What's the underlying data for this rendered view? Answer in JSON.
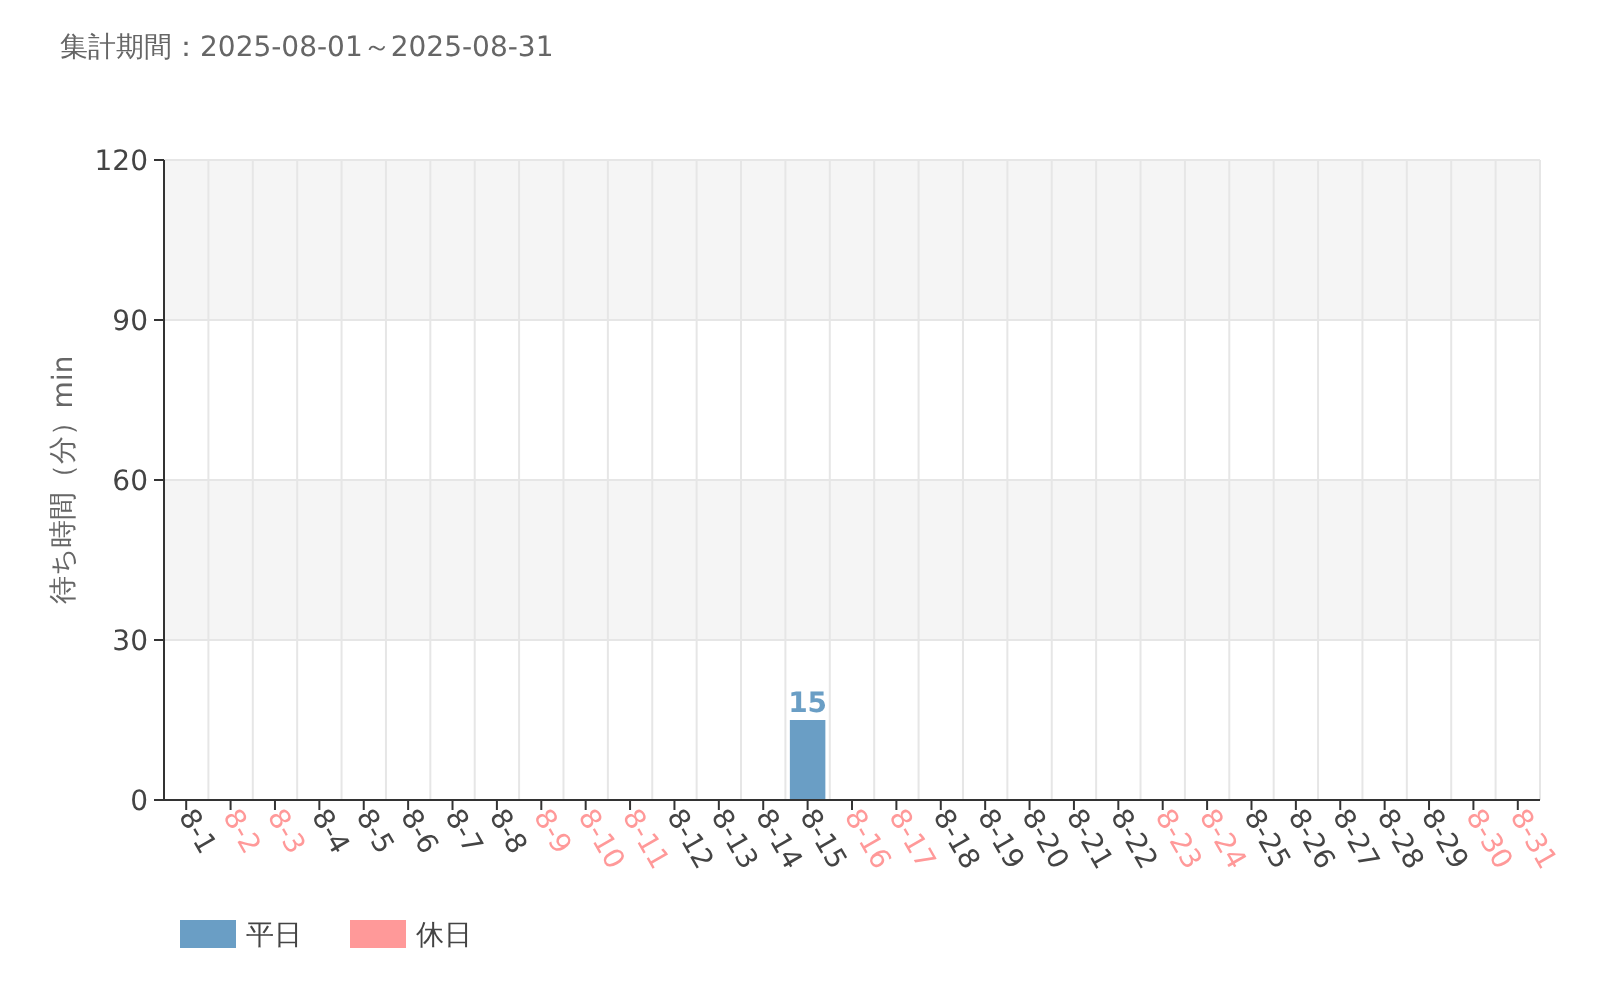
{
  "chart_data": {
    "type": "bar",
    "title": "集計期間：2025-08-01～2025-08-31",
    "ylabel": "待ち時間（分）min",
    "categories": [
      "8-1",
      "8-2",
      "8-3",
      "8-4",
      "8-5",
      "8-6",
      "8-7",
      "8-8",
      "8-9",
      "8-10",
      "8-11",
      "8-12",
      "8-13",
      "8-14",
      "8-15",
      "8-16",
      "8-17",
      "8-18",
      "8-19",
      "8-20",
      "8-21",
      "8-22",
      "8-23",
      "8-24",
      "8-25",
      "8-26",
      "8-27",
      "8-28",
      "8-29",
      "8-30",
      "8-31"
    ],
    "series": [
      {
        "name": "平日",
        "color": "#6a9ec5",
        "values": [
          0,
          null,
          null,
          0,
          0,
          0,
          0,
          0,
          null,
          null,
          null,
          0,
          0,
          0,
          15,
          null,
          null,
          0,
          0,
          0,
          0,
          0,
          null,
          null,
          0,
          0,
          0,
          0,
          0,
          null,
          null
        ],
        "value_labels": [
          null,
          null,
          null,
          null,
          null,
          null,
          null,
          null,
          null,
          null,
          null,
          null,
          null,
          null,
          "15",
          null,
          null,
          null,
          null,
          null,
          null,
          null,
          null,
          null,
          null,
          null,
          null,
          null,
          null,
          null,
          null
        ]
      },
      {
        "name": "休日",
        "color": "#ff9999",
        "values": [
          null,
          0,
          0,
          null,
          null,
          null,
          null,
          null,
          0,
          0,
          0,
          null,
          null,
          null,
          null,
          0,
          0,
          null,
          null,
          null,
          null,
          null,
          0,
          0,
          null,
          null,
          null,
          null,
          null,
          0,
          0
        ]
      }
    ],
    "ylim": [
      0,
      120
    ],
    "yticks": [
      0,
      30,
      60,
      90,
      120
    ],
    "grid": true,
    "legend": "bottom left"
  }
}
